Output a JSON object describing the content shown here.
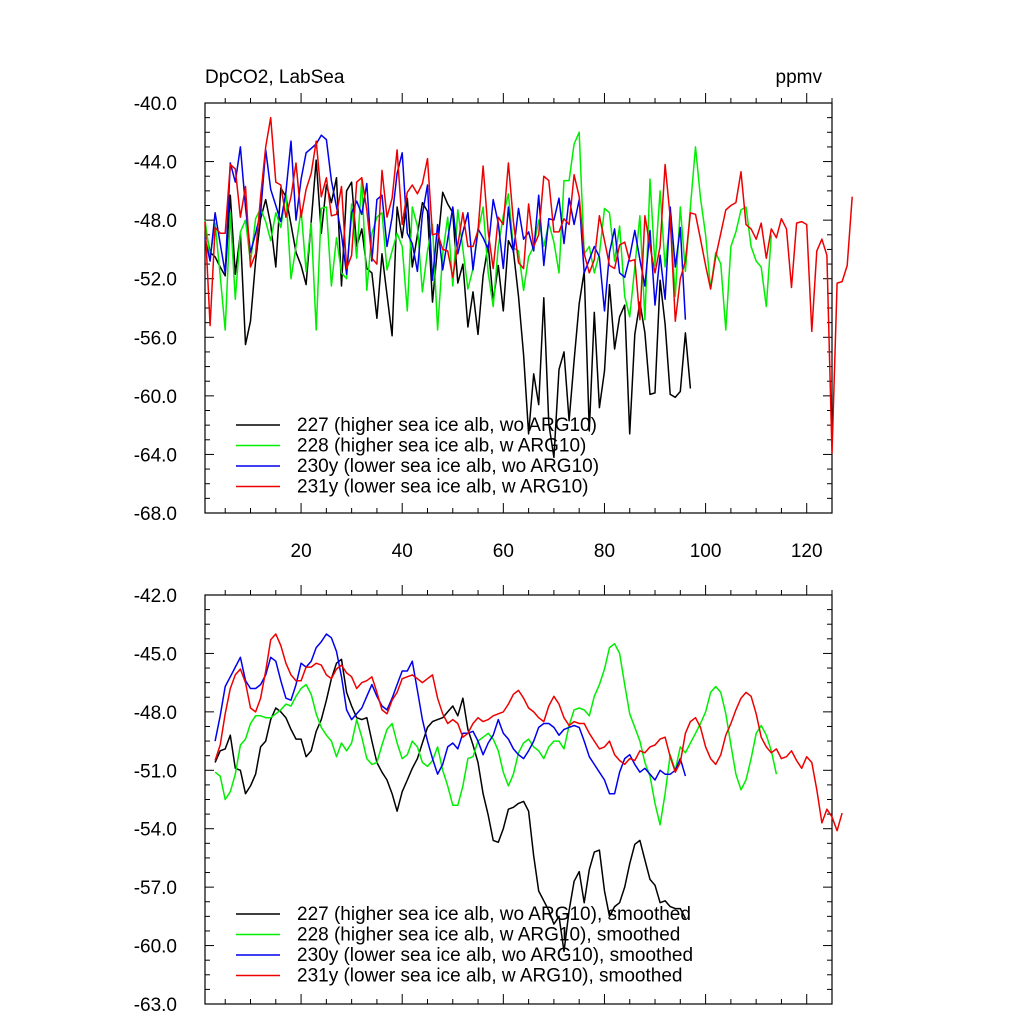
{
  "colors": {
    "227": "#000000",
    "228": "#00ee00",
    "230y": "#0000ee",
    "231y": "#ee0000"
  },
  "chart_data": [
    {
      "type": "line",
      "title": "DpCO2, LabSea",
      "title_right": "ppmv",
      "xlim": [
        1,
        125
      ],
      "ylim": [
        -68,
        -40
      ],
      "xticks": [
        20,
        40,
        60,
        80,
        100,
        120
      ],
      "xtick_labels": [
        "20",
        "40",
        "60",
        "80",
        "100",
        "120"
      ],
      "yticks": [
        -40,
        -44,
        -48,
        -52,
        -56,
        -60,
        -64,
        -68
      ],
      "ytick_labels": [
        "-40.0",
        "-44.0",
        "-48.0",
        "-52.0",
        "-56.0",
        "-60.0",
        "-64.0",
        "-68.0"
      ],
      "series": [
        {
          "name": "227 (higher sea ice alb, wo ARG10)",
          "key": "227",
          "x_start": 1,
          "values": [
            -48.4,
            -50.2,
            -50.5,
            -51.2,
            -51.8,
            -46.3,
            -51.7,
            -48.9,
            -56.5,
            -54.9,
            -50.8,
            -47.9,
            -46.6,
            -48.3,
            -51.2,
            -45.8,
            -46.4,
            -48.3,
            -50.2,
            -51.1,
            -52.4,
            -48.1,
            -43.9,
            -48.9,
            -45.6,
            -46.8,
            -45.1,
            -52.5,
            -46.0,
            -45.4,
            -49.8,
            -48.6,
            -51.3,
            -51.6,
            -54.7,
            -50.3,
            -53.1,
            -55.9,
            -47.1,
            -49.2,
            -46.5,
            -51.2,
            -49.0,
            -46.8,
            -47.4,
            -53.6,
            -49.8,
            -46.1,
            -46.9,
            -47.5,
            -52.3,
            -51.0,
            -55.3,
            -52.9,
            -55.8,
            -51.8,
            -49.7,
            -53.5,
            -51.1,
            -54.2,
            -49.4,
            -50.1,
            -53.2,
            -57.2,
            -62.6,
            -58.5,
            -60.6,
            -53.3,
            -61.9,
            -64.2,
            -58.2,
            -57.0,
            -61.7,
            -57.6,
            -53.7,
            -51.5,
            -62.4,
            -54.3,
            -60.8,
            -58.3,
            -52.4,
            -56.8,
            -54.6,
            -53.8,
            -62.6,
            -55.8,
            -53.6,
            -55.7,
            -59.9,
            -59.8,
            -52.1,
            -55.1,
            -59.9,
            -60.1,
            -59.7,
            -55.7,
            -59.5
          ]
        },
        {
          "name": "228 (higher sea ice alb, w ARG10)",
          "key": "228",
          "x_start": 1,
          "values": [
            -48.0,
            -50.5,
            -48.2,
            -51.8,
            -55.5,
            -47.5,
            -53.4,
            -48.8,
            -48.0,
            -50.9,
            -47.9,
            -47.2,
            -48.1,
            -49.4,
            -47.5,
            -48.5,
            -46.2,
            -52.0,
            -49.8,
            -47.3,
            -51.5,
            -48.2,
            -55.5,
            -47.2,
            -47.1,
            -52.5,
            -49.2,
            -51.6,
            -52.0,
            -46.9,
            -50.6,
            -45.2,
            -52.8,
            -48.9,
            -47.8,
            -47.5,
            -51.4,
            -50.1,
            -48.9,
            -49.8,
            -54.2,
            -47.1,
            -48.4,
            -52.9,
            -50.1,
            -48.3,
            -55.5,
            -50.3,
            -47.8,
            -52.5,
            -47.3,
            -50.0,
            -52.7,
            -51.3,
            -48.8,
            -47.1,
            -51.6,
            -53.9,
            -49.8,
            -47.7,
            -46.2,
            -49.9,
            -50.1,
            -52.8,
            -50.5,
            -49.8,
            -48.0,
            -49.8,
            -48.2,
            -49.5,
            -51.6,
            -45.3,
            -45.3,
            -42.8,
            -42.0,
            -50.3,
            -49.8,
            -51.6,
            -50.3,
            -47.2,
            -47.5,
            -50.8,
            -48.4,
            -53.2,
            -54.6,
            -51.2,
            -47.7,
            -54.8,
            -45.2,
            -51.1,
            -46.0,
            -51.2,
            -47.9,
            -53.2,
            -47.1,
            -51.5,
            -47.1,
            -43.0,
            -46.5,
            -49.0,
            -52.7,
            -50.2,
            -51.0,
            -55.5,
            -49.8,
            -48.8,
            -47.3,
            -47.1,
            -49.8,
            -50.8,
            -51.2,
            -53.9,
            -49.0
          ]
        },
        {
          "name": "230y (lower sea ice alb, wo ARG10)",
          "key": "230y",
          "x_start": 1,
          "values": [
            -49.2,
            -50.8,
            -47.5,
            -49.6,
            -51.6,
            -44.1,
            -45.4,
            -43.0,
            -47.1,
            -50.2,
            -48.9,
            -47.5,
            -43.2,
            -45.9,
            -47.0,
            -48.1,
            -46.1,
            -42.6,
            -48.0,
            -45.2,
            -43.4,
            -43.1,
            -42.8,
            -42.2,
            -42.5,
            -45.3,
            -47.1,
            -49.0,
            -51.7,
            -47.5,
            -46.7,
            -47.6,
            -45.5,
            -50.8,
            -46.6,
            -46.3,
            -49.8,
            -47.8,
            -44.8,
            -43.4,
            -48.9,
            -49.6,
            -51.5,
            -47.6,
            -45.6,
            -52.1,
            -48.3,
            -51.4,
            -49.3,
            -47.1,
            -50.3,
            -48.8,
            -47.5,
            -51.4,
            -48.6,
            -49.2,
            -50.0,
            -46.6,
            -48.2,
            -51.3,
            -47.1,
            -50.2,
            -47.2,
            -49.3,
            -48.8,
            -50.1,
            -46.3,
            -51.1,
            -47.9,
            -48.0,
            -46.5,
            -49.6,
            -46.5,
            -48.3,
            -46.6,
            -51.6,
            -50.7,
            -49.8,
            -50.5,
            -54.2,
            -50.2,
            -48.6,
            -51.6,
            -51.9,
            -50.5,
            -48.7,
            -50.7,
            -52.5,
            -48.7,
            -53.8,
            -50.4,
            -53.4,
            -47.1,
            -51.2,
            -48.5,
            -54.8
          ]
        },
        {
          "name": "231y (lower sea ice alb, w ARG10)",
          "key": "231y",
          "x_start": 1,
          "values": [
            -48.1,
            -55.2,
            -48.5,
            -48.9,
            -48.9,
            -44.2,
            -44.5,
            -47.8,
            -45.7,
            -51.2,
            -50.3,
            -46.4,
            -43.0,
            -41.0,
            -45.4,
            -45.6,
            -47.8,
            -46.4,
            -44.1,
            -47.8,
            -45.9,
            -44.8,
            -42.6,
            -46.4,
            -45.1,
            -47.7,
            -47.6,
            -45.7,
            -51.3,
            -50.4,
            -45.4,
            -45.1,
            -47.3,
            -50.6,
            -51.0,
            -44.6,
            -47.8,
            -46.5,
            -43.2,
            -48.3,
            -46.1,
            -45.6,
            -46.2,
            -45.5,
            -43.8,
            -49.0,
            -48.9,
            -50.0,
            -50.1,
            -51.9,
            -49.7,
            -47.5,
            -49.8,
            -49.8,
            -48.7,
            -44.3,
            -48.8,
            -51.3,
            -47.8,
            -48.3,
            -44.1,
            -48.1,
            -50.9,
            -51.3,
            -46.9,
            -49.8,
            -49.0,
            -45.0,
            -45.3,
            -48.8,
            -48.8,
            -47.9,
            -48.3,
            -44.9,
            -46.4,
            -50.3,
            -51.6,
            -50.7,
            -47.7,
            -49.4,
            -51.1,
            -51.3,
            -49.7,
            -49.5,
            -50.8,
            -50.7,
            -54.8,
            -47.7,
            -49.8,
            -51.6,
            -49.8,
            -44.2,
            -47.8,
            -54.9,
            -52.0,
            -50.8,
            -47.5,
            -47.6,
            -49.3,
            -51.1,
            -52.7,
            -50.5,
            -48.9,
            -47.3,
            -47.0,
            -46.8,
            -44.7,
            -48.3,
            -48.6,
            -49.3,
            -48.2,
            -50.6,
            -48.6,
            -49.2,
            -47.9,
            -48.6,
            -52.6,
            -48.2,
            -48.1,
            -48.3,
            -55.6,
            -50.1,
            -49.3,
            -50.4,
            -63.9,
            -52.3,
            -52.2,
            -51.1,
            -46.4
          ]
        }
      ],
      "legend": [
        "227 (higher sea ice alb, wo ARG10)",
        "228 (higher sea ice alb, w ARG10)",
        "230y (lower sea ice alb, wo ARG10)",
        "231y (lower sea ice alb, w ARG10)"
      ],
      "legend_position": "bottom-left"
    },
    {
      "type": "line",
      "title": "",
      "xlim": [
        1,
        125
      ],
      "ylim": [
        -63,
        -42
      ],
      "xticks": [
        20,
        40,
        60,
        80,
        100,
        120
      ],
      "xtick_labels": [],
      "yticks": [
        -42,
        -45,
        -48,
        -51,
        -54,
        -57,
        -60,
        -63
      ],
      "ytick_labels": [
        "-42.0",
        "-45.0",
        "-48.0",
        "-51.0",
        "-54.0",
        "-57.0",
        "-60.0",
        "-63.0"
      ],
      "series": [
        {
          "name": "227 (higher sea ice alb, wo ARG10), smoothed",
          "key": "227",
          "x_start": 3,
          "values": [
            -50.6,
            -50.0,
            -49.9,
            -49.2,
            -50.9,
            -51.0,
            -52.2,
            -51.8,
            -51.2,
            -49.8,
            -49.5,
            -48.4,
            -47.8,
            -48.0,
            -48.3,
            -48.9,
            -49.4,
            -49.4,
            -50.3,
            -50.0,
            -49.0,
            -48.4,
            -47.4,
            -46.3,
            -45.5,
            -45.3,
            -47.0,
            -47.7,
            -48.3,
            -48.4,
            -48.3,
            -49.5,
            -50.6,
            -51.1,
            -51.5,
            -52.2,
            -53.1,
            -52.1,
            -51.5,
            -50.9,
            -50.4,
            -49.6,
            -48.8,
            -48.5,
            -48.4,
            -48.3,
            -48.0,
            -47.7,
            -48.2,
            -47.3,
            -48.9,
            -49.7,
            -50.6,
            -52.2,
            -53.3,
            -54.6,
            -54.7,
            -54.0,
            -53.0,
            -52.9,
            -52.7,
            -52.6,
            -53.1,
            -55.4,
            -57.2,
            -57.7,
            -58.2,
            -58.9,
            -58.5,
            -60.3,
            -58.2,
            -56.7,
            -56.2,
            -57.8,
            -56.1,
            -55.2,
            -55.1,
            -57.2,
            -58.5,
            -58.0,
            -57.8,
            -57.0,
            -55.8,
            -54.8,
            -54.6,
            -55.6,
            -56.6,
            -56.9,
            -57.8,
            -57.7,
            -58.0,
            -58.1,
            -58.1,
            -58.6
          ]
        },
        {
          "name": "228 (higher sea ice alb, w ARG10), smoothed",
          "key": "228",
          "x_start": 3,
          "values": [
            -51.1,
            -51.3,
            -52.5,
            -52.1,
            -51.2,
            -49.7,
            -49.4,
            -48.6,
            -48.2,
            -48.2,
            -48.3,
            -48.3,
            -48.1,
            -47.9,
            -47.6,
            -47.7,
            -47.2,
            -46.8,
            -46.6,
            -47.1,
            -48.1,
            -48.8,
            -49.2,
            -49.5,
            -50.3,
            -49.6,
            -50.0,
            -49.6,
            -48.4,
            -49.3,
            -50.4,
            -50.7,
            -50.6,
            -49.7,
            -48.9,
            -48.6,
            -49.6,
            -50.4,
            -50.2,
            -49.5,
            -49.8,
            -50.6,
            -50.8,
            -50.5,
            -49.8,
            -51.0,
            -51.8,
            -52.8,
            -52.8,
            -51.8,
            -50.4,
            -50.3,
            -49.5,
            -49.3,
            -49.1,
            -49.4,
            -50.0,
            -51.1,
            -51.8,
            -51.2,
            -50.1,
            -49.6,
            -49.4,
            -49.8,
            -50.0,
            -50.4,
            -49.8,
            -49.5,
            -49.5,
            -49.9,
            -48.7,
            -47.9,
            -47.8,
            -47.9,
            -48.2,
            -47.2,
            -46.6,
            -45.8,
            -44.7,
            -44.5,
            -45.0,
            -46.6,
            -48.1,
            -48.8,
            -49.5,
            -50.6,
            -51.3,
            -52.7,
            -53.8,
            -52.2,
            -50.2,
            -51.0,
            -49.8,
            -50.1,
            -49.6,
            -49.1,
            -48.6,
            -48.0,
            -47.0,
            -46.7,
            -47.0,
            -48.1,
            -49.7,
            -51.2,
            -52.0,
            -51.5,
            -50.4,
            -49.1,
            -48.7,
            -49.2,
            -50.0,
            -51.2
          ]
        },
        {
          "name": "230y (lower sea ice alb, wo ARG10), smoothed",
          "key": "230y",
          "x_start": 3,
          "values": [
            -49.5,
            -48.2,
            -46.7,
            -46.2,
            -45.7,
            -45.2,
            -46.4,
            -46.8,
            -46.8,
            -46.6,
            -46.1,
            -45.2,
            -45.4,
            -46.4,
            -47.3,
            -47.4,
            -46.6,
            -45.5,
            -45.7,
            -45.4,
            -44.7,
            -44.4,
            -44.0,
            -44.2,
            -44.9,
            -46.2,
            -47.9,
            -48.4,
            -48.1,
            -47.8,
            -47.2,
            -46.6,
            -47.2,
            -47.7,
            -47.9,
            -47.3,
            -46.6,
            -45.9,
            -45.9,
            -45.4,
            -46.9,
            -48.4,
            -49.5,
            -50.4,
            -51.2,
            -50.7,
            -49.8,
            -49.6,
            -49.9,
            -49.1,
            -49.1,
            -49.0,
            -49.5,
            -50.2,
            -49.6,
            -49.2,
            -48.4,
            -49.1,
            -49.4,
            -49.9,
            -50.2,
            -50.4,
            -50.0,
            -49.5,
            -48.8,
            -48.6,
            -48.6,
            -48.8,
            -49.2,
            -48.9,
            -48.8,
            -48.7,
            -48.8,
            -49.5,
            -50.3,
            -50.7,
            -51.1,
            -51.5,
            -52.2,
            -52.2,
            -51.1,
            -50.4,
            -50.2,
            -50.7,
            -51.1,
            -50.9,
            -51.2,
            -51.5,
            -51.0,
            -51.2,
            -51.2,
            -51.0,
            -50.4,
            -51.3
          ]
        },
        {
          "name": "231y (lower sea ice alb, w ARG10), smoothed",
          "key": "231y",
          "x_start": 3,
          "values": [
            -50.5,
            -49.7,
            -48.1,
            -46.8,
            -46.1,
            -45.8,
            -46.5,
            -47.8,
            -48.0,
            -47.3,
            -45.9,
            -44.3,
            -44.0,
            -44.6,
            -45.5,
            -46.1,
            -46.4,
            -46.4,
            -45.7,
            -45.7,
            -45.5,
            -45.6,
            -46.1,
            -46.3,
            -45.8,
            -45.6,
            -46.0,
            -46.2,
            -46.8,
            -46.5,
            -46.4,
            -46.2,
            -47.0,
            -47.9,
            -48.1,
            -47.4,
            -47.0,
            -46.3,
            -46.2,
            -46.1,
            -46.3,
            -46.5,
            -46.3,
            -46.1,
            -47.3,
            -48.1,
            -48.6,
            -48.4,
            -48.6,
            -49.3,
            -49.1,
            -48.6,
            -48.3,
            -48.5,
            -48.4,
            -48.2,
            -48.1,
            -48.0,
            -47.6,
            -47.1,
            -46.9,
            -47.3,
            -47.8,
            -48.0,
            -48.3,
            -48.5,
            -47.7,
            -47.2,
            -47.6,
            -48.3,
            -48.7,
            -48.5,
            -48.6,
            -48.6,
            -49.1,
            -49.5,
            -49.9,
            -49.8,
            -49.5,
            -50.2,
            -50.5,
            -50.7,
            -50.4,
            -50.5,
            -50.0,
            -50.1,
            -49.8,
            -49.7,
            -49.4,
            -49.3,
            -50.3,
            -51.1,
            -50.6,
            -49.1,
            -48.5,
            -48.3,
            -48.8,
            -49.8,
            -50.4,
            -50.7,
            -50.2,
            -49.2,
            -48.6,
            -47.9,
            -47.3,
            -47.0,
            -47.2,
            -48.1,
            -49.3,
            -49.8,
            -50.1,
            -49.9,
            -50.4,
            -50.3,
            -50.0,
            -50.5,
            -50.9,
            -50.3,
            -50.6,
            -52.0,
            -53.7,
            -53.0,
            -53.4,
            -54.1,
            -53.2
          ]
        }
      ],
      "legend": [
        "227 (higher sea ice alb, wo ARG10), smoothed",
        "228 (higher sea ice alb, w ARG10), smoothed",
        "230y (lower sea ice alb, wo ARG10), smoothed",
        "231y (lower sea ice alb, w ARG10), smoothed"
      ],
      "legend_position": "bottom-left"
    }
  ]
}
